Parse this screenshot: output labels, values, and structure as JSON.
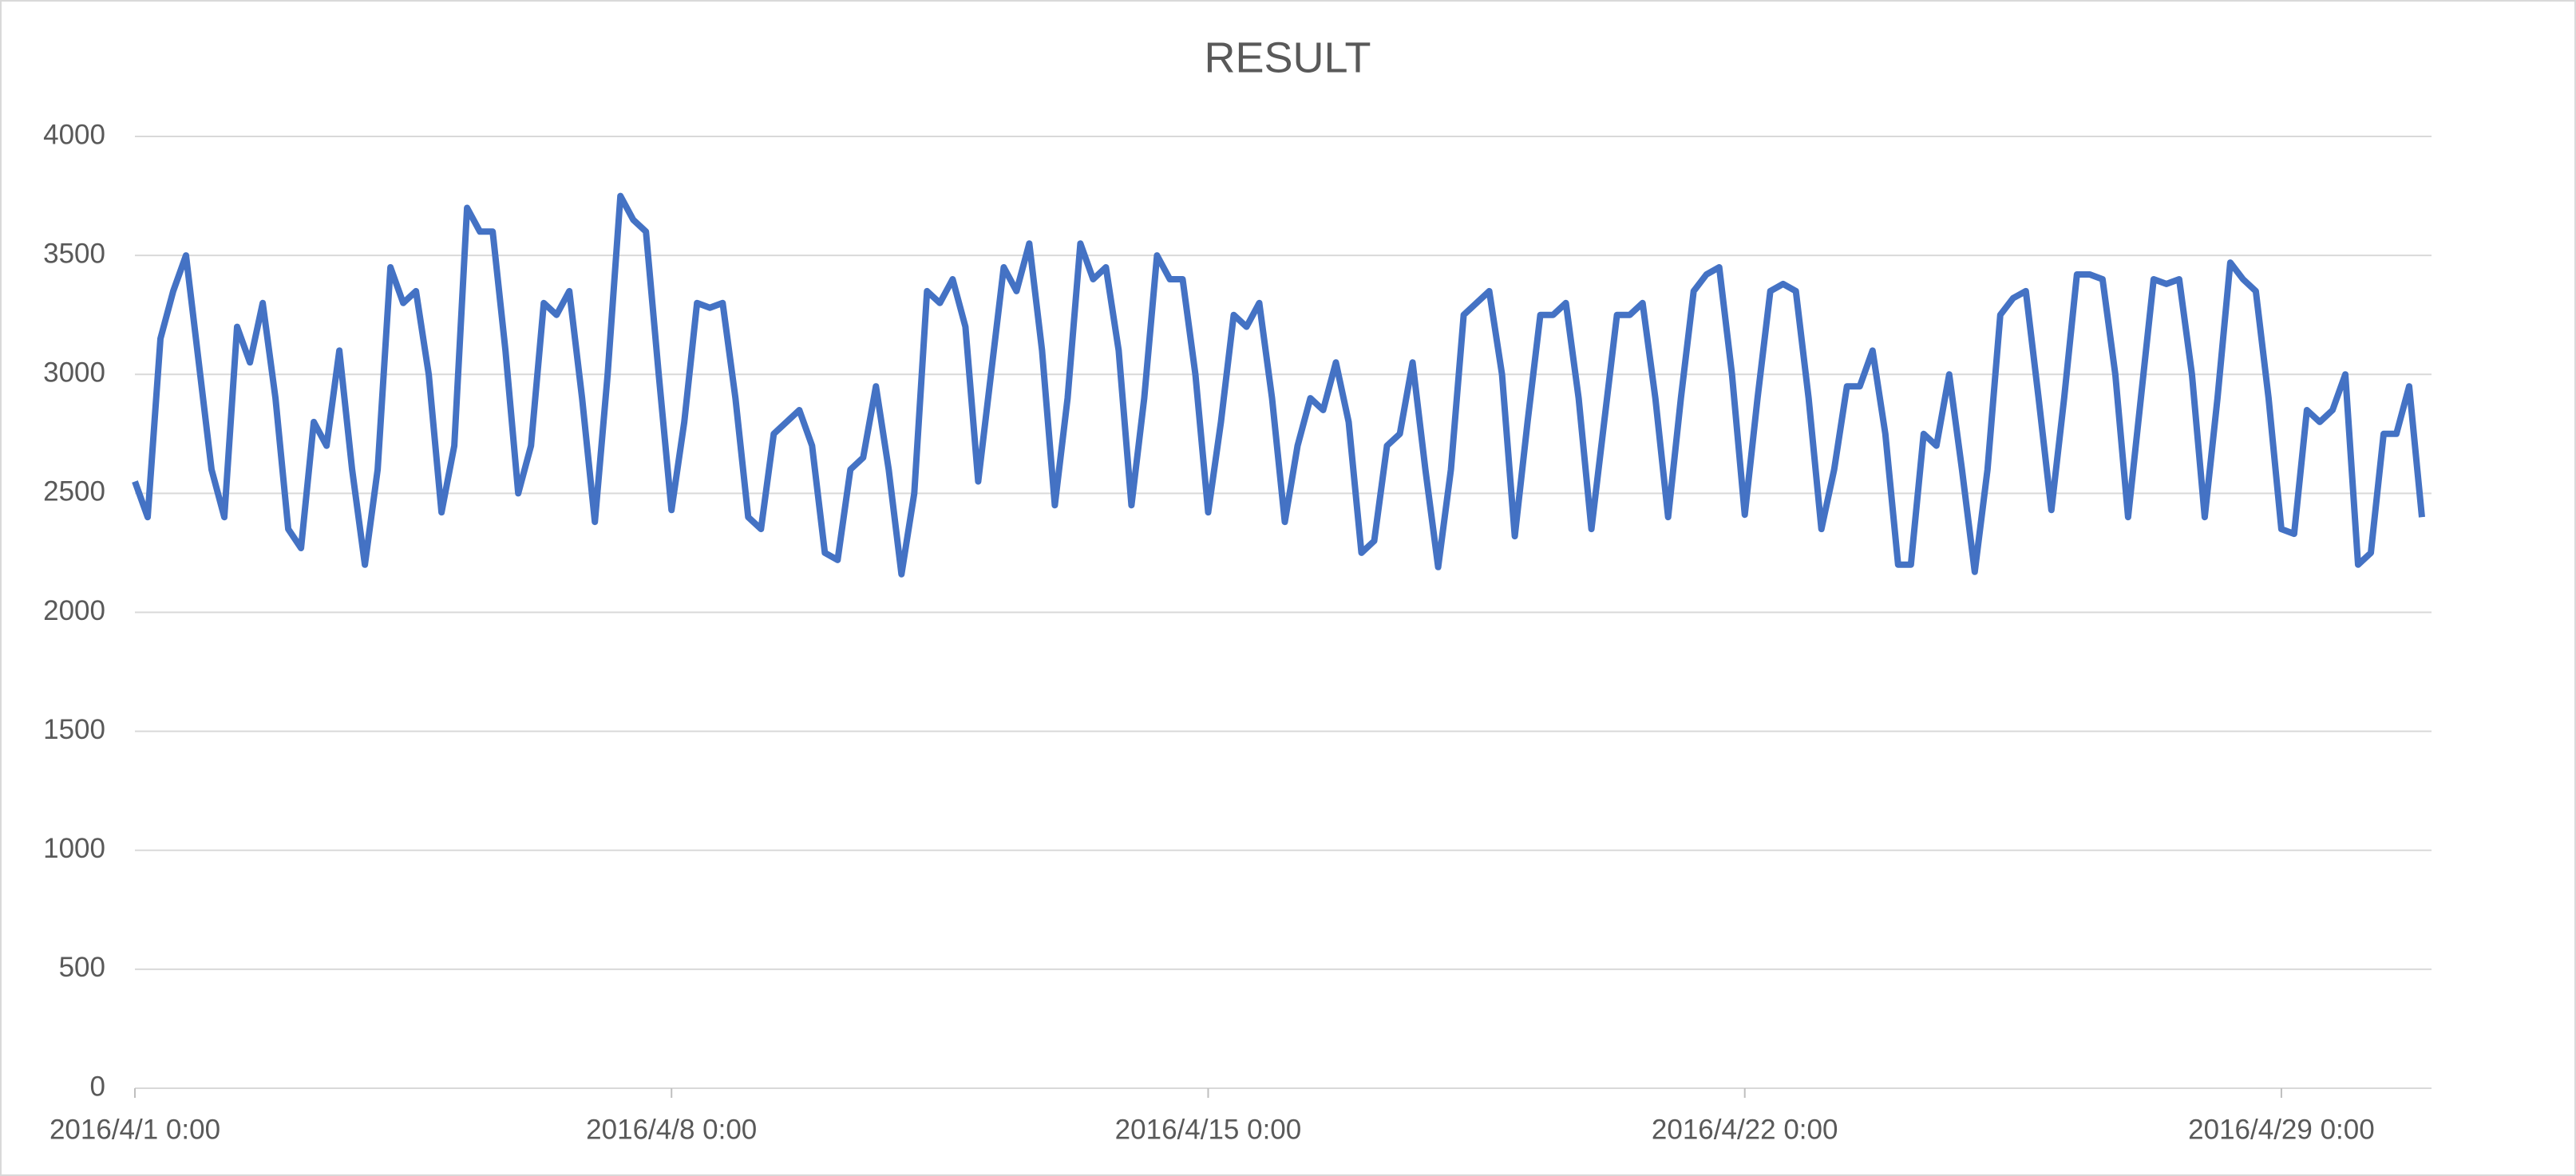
{
  "chart_data": {
    "type": "line",
    "title": "RESULT",
    "x": [
      "2016/4/1 0:00",
      "2016/4/1 4:00",
      "2016/4/1 8:00",
      "2016/4/1 12:00",
      "2016/4/1 16:00",
      "2016/4/1 20:00",
      "2016/4/2 0:00",
      "2016/4/2 4:00",
      "2016/4/2 8:00",
      "2016/4/2 12:00",
      "2016/4/2 16:00",
      "2016/4/2 20:00",
      "2016/4/3 0:00",
      "2016/4/3 4:00",
      "2016/4/3 8:00",
      "2016/4/3 12:00",
      "2016/4/3 16:00",
      "2016/4/3 20:00",
      "2016/4/4 0:00",
      "2016/4/4 4:00",
      "2016/4/4 8:00",
      "2016/4/4 12:00",
      "2016/4/4 16:00",
      "2016/4/4 20:00",
      "2016/4/5 0:00",
      "2016/4/5 4:00",
      "2016/4/5 8:00",
      "2016/4/5 12:00",
      "2016/4/5 16:00",
      "2016/4/5 20:00",
      "2016/4/6 0:00",
      "2016/4/6 4:00",
      "2016/4/6 8:00",
      "2016/4/6 12:00",
      "2016/4/6 16:00",
      "2016/4/6 20:00",
      "2016/4/7 0:00",
      "2016/4/7 4:00",
      "2016/4/7 8:00",
      "2016/4/7 12:00",
      "2016/4/7 16:00",
      "2016/4/7 20:00",
      "2016/4/8 0:00",
      "2016/4/8 4:00",
      "2016/4/8 8:00",
      "2016/4/8 12:00",
      "2016/4/8 16:00",
      "2016/4/8 20:00",
      "2016/4/9 0:00",
      "2016/4/9 4:00",
      "2016/4/9 8:00",
      "2016/4/9 12:00",
      "2016/4/9 16:00",
      "2016/4/9 20:00",
      "2016/4/10 0:00",
      "2016/4/10 4:00",
      "2016/4/10 8:00",
      "2016/4/10 12:00",
      "2016/4/10 16:00",
      "2016/4/10 20:00",
      "2016/4/11 0:00",
      "2016/4/11 4:00",
      "2016/4/11 8:00",
      "2016/4/11 12:00",
      "2016/4/11 16:00",
      "2016/4/11 20:00",
      "2016/4/12 0:00",
      "2016/4/12 4:00",
      "2016/4/12 8:00",
      "2016/4/12 12:00",
      "2016/4/12 16:00",
      "2016/4/12 20:00",
      "2016/4/13 0:00",
      "2016/4/13 4:00",
      "2016/4/13 8:00",
      "2016/4/13 12:00",
      "2016/4/13 16:00",
      "2016/4/13 20:00",
      "2016/4/14 0:00",
      "2016/4/14 4:00",
      "2016/4/14 8:00",
      "2016/4/14 12:00",
      "2016/4/14 16:00",
      "2016/4/14 20:00",
      "2016/4/15 0:00",
      "2016/4/15 4:00",
      "2016/4/15 8:00",
      "2016/4/15 12:00",
      "2016/4/15 16:00",
      "2016/4/15 20:00",
      "2016/4/16 0:00",
      "2016/4/16 4:00",
      "2016/4/16 8:00",
      "2016/4/16 12:00",
      "2016/4/16 16:00",
      "2016/4/16 20:00",
      "2016/4/17 0:00",
      "2016/4/17 4:00",
      "2016/4/17 8:00",
      "2016/4/17 12:00",
      "2016/4/17 16:00",
      "2016/4/17 20:00",
      "2016/4/18 0:00",
      "2016/4/18 4:00",
      "2016/4/18 8:00",
      "2016/4/18 12:00",
      "2016/4/18 16:00",
      "2016/4/18 20:00",
      "2016/4/19 0:00",
      "2016/4/19 4:00",
      "2016/4/19 8:00",
      "2016/4/19 12:00",
      "2016/4/19 16:00",
      "2016/4/19 20:00",
      "2016/4/20 0:00",
      "2016/4/20 4:00",
      "2016/4/20 8:00",
      "2016/4/20 12:00",
      "2016/4/20 16:00",
      "2016/4/20 20:00",
      "2016/4/21 0:00",
      "2016/4/21 4:00",
      "2016/4/21 8:00",
      "2016/4/21 12:00",
      "2016/4/21 16:00",
      "2016/4/21 20:00",
      "2016/4/22 0:00",
      "2016/4/22 4:00",
      "2016/4/22 8:00",
      "2016/4/22 12:00",
      "2016/4/22 16:00",
      "2016/4/22 20:00",
      "2016/4/23 0:00",
      "2016/4/23 4:00",
      "2016/4/23 8:00",
      "2016/4/23 12:00",
      "2016/4/23 16:00",
      "2016/4/23 20:00",
      "2016/4/24 0:00",
      "2016/4/24 4:00",
      "2016/4/24 8:00",
      "2016/4/24 12:00",
      "2016/4/24 16:00",
      "2016/4/24 20:00",
      "2016/4/25 0:00",
      "2016/4/25 4:00",
      "2016/4/25 8:00",
      "2016/4/25 12:00",
      "2016/4/25 16:00",
      "2016/4/25 20:00",
      "2016/4/26 0:00",
      "2016/4/26 4:00",
      "2016/4/26 8:00",
      "2016/4/26 12:00",
      "2016/4/26 16:00",
      "2016/4/26 20:00",
      "2016/4/27 0:00",
      "2016/4/27 4:00",
      "2016/4/27 8:00",
      "2016/4/27 12:00",
      "2016/4/27 16:00",
      "2016/4/27 20:00",
      "2016/4/28 0:00",
      "2016/4/28 4:00",
      "2016/4/28 8:00",
      "2016/4/28 12:00",
      "2016/4/28 16:00",
      "2016/4/28 20:00",
      "2016/4/29 0:00",
      "2016/4/29 4:00",
      "2016/4/29 8:00",
      "2016/4/29 12:00",
      "2016/4/29 16:00",
      "2016/4/29 20:00",
      "2016/4/30 0:00",
      "2016/4/30 4:00",
      "2016/4/30 8:00",
      "2016/4/30 12:00",
      "2016/4/30 16:00",
      "2016/4/30 20:00"
    ],
    "series": [
      {
        "name": "RESULT",
        "color": "#4472c4",
        "values": [
          2550,
          2400,
          3150,
          3350,
          3500,
          3050,
          2600,
          2400,
          3200,
          3050,
          3300,
          2900,
          2350,
          2270,
          2800,
          2700,
          3100,
          2600,
          2200,
          2600,
          3450,
          3300,
          3350,
          3000,
          2420,
          2700,
          3700,
          3600,
          3600,
          3100,
          2500,
          2700,
          3300,
          3250,
          3350,
          2900,
          2380,
          3000,
          3750,
          3650,
          3600,
          3000,
          2430,
          2800,
          3300,
          3280,
          3300,
          2900,
          2400,
          2350,
          2750,
          2800,
          2850,
          2700,
          2250,
          2220,
          2600,
          2650,
          2950,
          2600,
          2160,
          2500,
          3350,
          3300,
          3400,
          3200,
          2550,
          3000,
          3450,
          3350,
          3550,
          3100,
          2450,
          2900,
          3550,
          3400,
          3450,
          3100,
          2450,
          2900,
          3500,
          3400,
          3400,
          3000,
          2420,
          2800,
          3250,
          3200,
          3300,
          2900,
          2380,
          2700,
          2900,
          2850,
          3050,
          2800,
          2250,
          2300,
          2700,
          2750,
          3050,
          2600,
          2190,
          2600,
          3250,
          3300,
          3350,
          3000,
          2320,
          2800,
          3250,
          3250,
          3300,
          2900,
          2350,
          2800,
          3250,
          3250,
          3300,
          2900,
          2400,
          2900,
          3350,
          3420,
          3450,
          3000,
          2410,
          2900,
          3350,
          3380,
          3350,
          2900,
          2350,
          2600,
          2950,
          2950,
          3100,
          2750,
          2200,
          2200,
          2750,
          2700,
          3000,
          2600,
          2170,
          2600,
          3250,
          3320,
          3350,
          2900,
          2430,
          2900,
          3420,
          3420,
          3400,
          3000,
          2400,
          2900,
          3400,
          3380,
          3400,
          3000,
          2400,
          2900,
          3470,
          3400,
          3350,
          2900,
          2350,
          2330,
          2850,
          2800,
          2850,
          3000,
          2200,
          2250,
          2750,
          2750,
          2950,
          2400
        ]
      }
    ],
    "xlim": [
      "2016/4/1 0:00",
      "2016/4/30 23:00"
    ],
    "xticks": [
      "2016/4/1 0:00",
      "2016/4/8 0:00",
      "2016/4/15 0:00",
      "2016/4/22 0:00",
      "2016/4/29 0:00"
    ],
    "ylim": [
      0,
      4000
    ],
    "yticks": [
      0,
      500,
      1000,
      1500,
      2000,
      2500,
      3000,
      3500,
      4000
    ],
    "grid": true
  }
}
